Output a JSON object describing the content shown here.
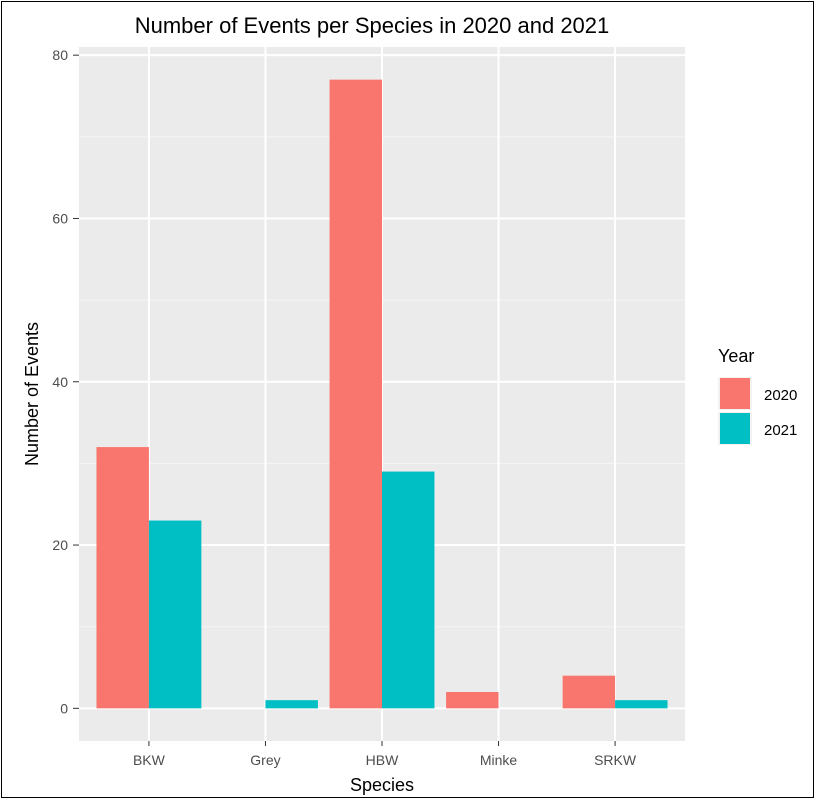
{
  "chart_data": {
    "type": "bar",
    "title": "Number of Events per Species in 2020 and 2021",
    "xlabel": "Species",
    "ylabel": "Number of Events",
    "categories": [
      "BKW",
      "Grey",
      "HBW",
      "Minke",
      "SRKW"
    ],
    "series": [
      {
        "name": "2020",
        "color": "#F8766D",
        "values": [
          32,
          0,
          77,
          2,
          4
        ]
      },
      {
        "name": "2021",
        "color": "#00BFC4",
        "values": [
          23,
          1,
          29,
          0,
          1
        ]
      }
    ],
    "yticks": [
      0,
      20,
      40,
      60,
      80
    ],
    "ylim": [
      -4,
      81
    ],
    "grid": true,
    "legend": {
      "title": "Year",
      "placement": "right"
    },
    "colors": {
      "panel": "#EBEBEB",
      "grid_major": "#FFFFFF",
      "grid_minor": "#F5F5F5"
    }
  }
}
